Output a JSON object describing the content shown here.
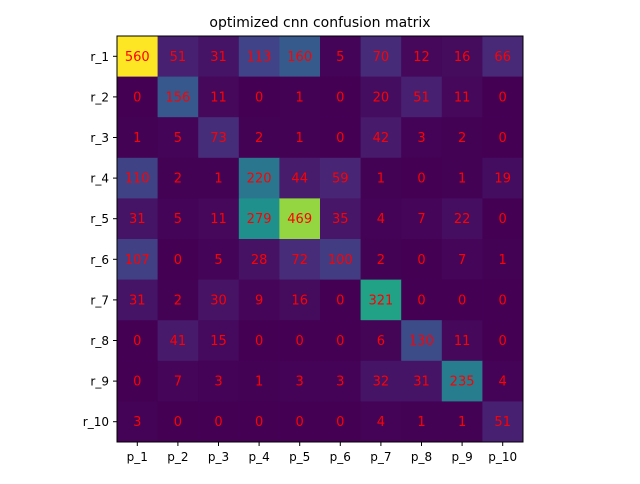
{
  "chart_data": {
    "type": "heatmap",
    "title": "optimized cnn confusion matrix",
    "xlabel": "",
    "ylabel": "",
    "x_categories": [
      "p_1",
      "p_2",
      "p_3",
      "p_4",
      "p_5",
      "p_6",
      "p_7",
      "p_8",
      "p_9",
      "p_10"
    ],
    "y_categories": [
      "r_1",
      "r_2",
      "r_3",
      "r_4",
      "r_5",
      "r_6",
      "r_7",
      "r_8",
      "r_9",
      "r_10"
    ],
    "values": [
      [
        560,
        51,
        31,
        113,
        160,
        5,
        70,
        12,
        16,
        66
      ],
      [
        0,
        156,
        11,
        0,
        1,
        0,
        20,
        51,
        11,
        0
      ],
      [
        1,
        5,
        73,
        2,
        1,
        0,
        42,
        3,
        2,
        0
      ],
      [
        110,
        2,
        1,
        220,
        44,
        59,
        1,
        0,
        1,
        19
      ],
      [
        31,
        5,
        11,
        279,
        469,
        35,
        4,
        7,
        22,
        0
      ],
      [
        107,
        0,
        5,
        28,
        72,
        100,
        2,
        0,
        7,
        1
      ],
      [
        31,
        2,
        30,
        9,
        16,
        0,
        321,
        0,
        0,
        0
      ],
      [
        0,
        41,
        15,
        0,
        0,
        0,
        6,
        130,
        11,
        0
      ],
      [
        0,
        7,
        3,
        1,
        3,
        3,
        32,
        31,
        235,
        4
      ],
      [
        3,
        0,
        0,
        0,
        0,
        0,
        4,
        1,
        1,
        51
      ]
    ],
    "colormap": "viridis",
    "vmin": 0,
    "vmax": 560,
    "annotation_color": "#ff0000",
    "grid": false,
    "legend": "none"
  }
}
